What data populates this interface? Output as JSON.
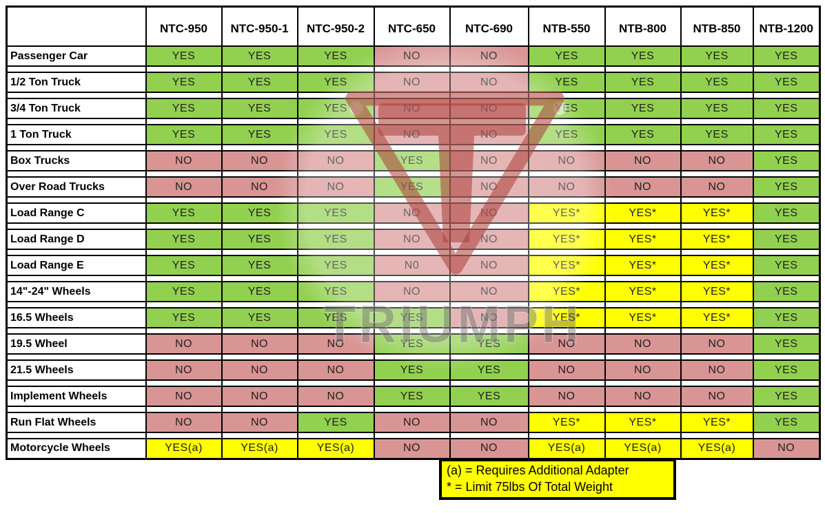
{
  "chart_data": {
    "type": "table",
    "columns": [
      "",
      "NTC-950",
      "NTC-950-1",
      "NTC-950-2",
      "NTC-650",
      "NTC-690",
      "NTB-550",
      "NTB-800",
      "NTB-850",
      "NTB-1200"
    ],
    "rows": [
      {
        "label": "Passenger Car",
        "values": [
          "YES",
          "YES",
          "YES",
          "NO",
          "NO",
          "YES",
          "YES",
          "YES",
          "YES"
        ]
      },
      {
        "label": "1/2 Ton Truck",
        "values": [
          "YES",
          "YES",
          "YES",
          "NO",
          "NO",
          "YES",
          "YES",
          "YES",
          "YES"
        ]
      },
      {
        "label": "3/4 Ton Truck",
        "values": [
          "YES",
          "YES",
          "YES",
          "NO",
          "NO",
          "YES",
          "YES",
          "YES",
          "YES"
        ]
      },
      {
        "label": "1 Ton Truck",
        "values": [
          "YES",
          "YES",
          "YES",
          "NO",
          "NO",
          "YES",
          "YES",
          "YES",
          "YES"
        ]
      },
      {
        "label": "Box Trucks",
        "values": [
          "NO",
          "NO",
          "NO",
          "YES",
          "NO",
          "NO",
          "NO",
          "NO",
          "YES"
        ]
      },
      {
        "label": "Over Road Trucks",
        "values": [
          "NO",
          "NO",
          "NO",
          "YES",
          "NO",
          "NO",
          "NO",
          "NO",
          "YES"
        ]
      },
      {
        "label": "Load Range C",
        "values": [
          "YES",
          "YES",
          "YES",
          "NO",
          "NO",
          "YES*",
          "YES*",
          "YES*",
          "YES"
        ]
      },
      {
        "label": "Load Range D",
        "values": [
          "YES",
          "YES",
          "YES",
          "NO",
          "NO",
          "YES*",
          "YES*",
          "YES*",
          "YES"
        ]
      },
      {
        "label": "Load Range E",
        "values": [
          "YES",
          "YES",
          "YES",
          "N0",
          "NO",
          "YES*",
          "YES*",
          "YES*",
          "YES"
        ]
      },
      {
        "label": "14\"-24\" Wheels",
        "values": [
          "YES",
          "YES",
          "YES",
          "NO",
          "NO",
          "YES*",
          "YES*",
          "YES*",
          "YES"
        ]
      },
      {
        "label": "16.5 Wheels",
        "values": [
          "YES",
          "YES",
          "YES",
          "YES",
          "NO",
          "YES*",
          "YES*",
          "YES*",
          "YES"
        ]
      },
      {
        "label": "19.5 Wheel",
        "values": [
          "NO",
          "NO",
          "NO",
          "YES",
          "YES",
          "NO",
          "NO",
          "NO",
          "YES"
        ]
      },
      {
        "label": "21.5 Wheels",
        "values": [
          "NO",
          "NO",
          "NO",
          "YES",
          "YES",
          "NO",
          "NO",
          "NO",
          "YES"
        ]
      },
      {
        "label": "Implement Wheels",
        "values": [
          "NO",
          "NO",
          "NO",
          "YES",
          "YES",
          "NO",
          "NO",
          "NO",
          "YES"
        ]
      },
      {
        "label": "Run Flat Wheels",
        "values": [
          "NO",
          "NO",
          "YES",
          "NO",
          "NO",
          "YES*",
          "YES*",
          "YES*",
          "YES"
        ]
      },
      {
        "label": "Motorcycle Wheels",
        "values": [
          "YES(a)",
          "YES(a)",
          "YES(a)",
          "NO",
          "NO",
          "YES(a)",
          "YES(a)",
          "YES(a)",
          "NO"
        ]
      }
    ],
    "legend_notes": [
      "(a) = Requires Additional Adapter",
      "* = Limit 75lbs Of Total Weight"
    ]
  },
  "footnotes": [
    "(a) = Requires Additional Adapter",
    "* = Limit 75lbs Of Total Weight"
  ],
  "watermark": {
    "text": "TRIUMPH"
  },
  "colors": {
    "yes_green": "#92D050",
    "no_red": "#D99594",
    "note_yellow": "#FFFF00",
    "border_black": "#000000"
  }
}
